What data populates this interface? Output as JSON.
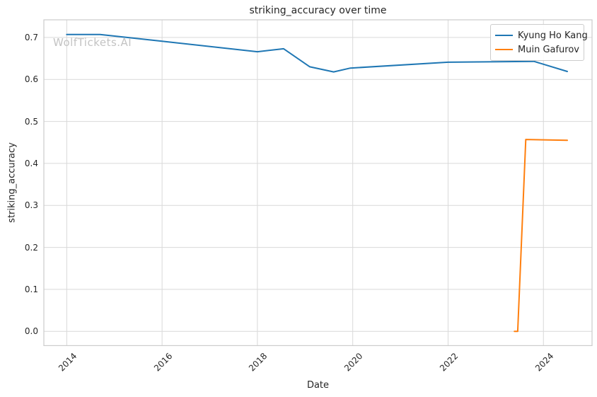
{
  "chart_data": {
    "type": "line",
    "title": "striking_accuracy over time",
    "xlabel": "Date",
    "ylabel": "striking_accuracy",
    "watermark": "WolfTickets.AI",
    "xlim": [
      2013.52,
      2025.02
    ],
    "ylim": [
      -0.034,
      0.742
    ],
    "grid": true,
    "legend_position": "upper right",
    "x_ticks": {
      "values": [
        2014,
        2016,
        2018,
        2020,
        2022,
        2024
      ],
      "labels": [
        "2014",
        "2016",
        "2018",
        "2020",
        "2022",
        "2024"
      ]
    },
    "y_ticks": {
      "values": [
        0.0,
        0.1,
        0.2,
        0.3,
        0.4,
        0.5,
        0.6,
        0.7
      ],
      "labels": [
        "0.0",
        "0.1",
        "0.2",
        "0.3",
        "0.4",
        "0.5",
        "0.6",
        "0.7"
      ]
    },
    "series": [
      {
        "name": "Kyung Ho Kang",
        "color": "#1f77b4",
        "points": [
          [
            2014.0,
            0.707
          ],
          [
            2014.7,
            0.707
          ],
          [
            2016.0,
            0.691
          ],
          [
            2018.0,
            0.666
          ],
          [
            2018.55,
            0.673
          ],
          [
            2019.1,
            0.63
          ],
          [
            2019.6,
            0.618
          ],
          [
            2019.95,
            0.627
          ],
          [
            2022.0,
            0.641
          ],
          [
            2023.8,
            0.643
          ],
          [
            2024.5,
            0.619
          ]
        ]
      },
      {
        "name": "Muin Gafurov",
        "color": "#ff7f0e",
        "points": [
          [
            2023.39,
            0.0
          ],
          [
            2023.46,
            0.0
          ],
          [
            2023.63,
            0.457
          ],
          [
            2024.5,
            0.455
          ]
        ]
      }
    ]
  },
  "style_colors": {
    "grid": "#d9d9d9",
    "spine": "#cccccc",
    "text": "#262626",
    "watermark": "#c3c3c3",
    "background": "#ffffff"
  }
}
